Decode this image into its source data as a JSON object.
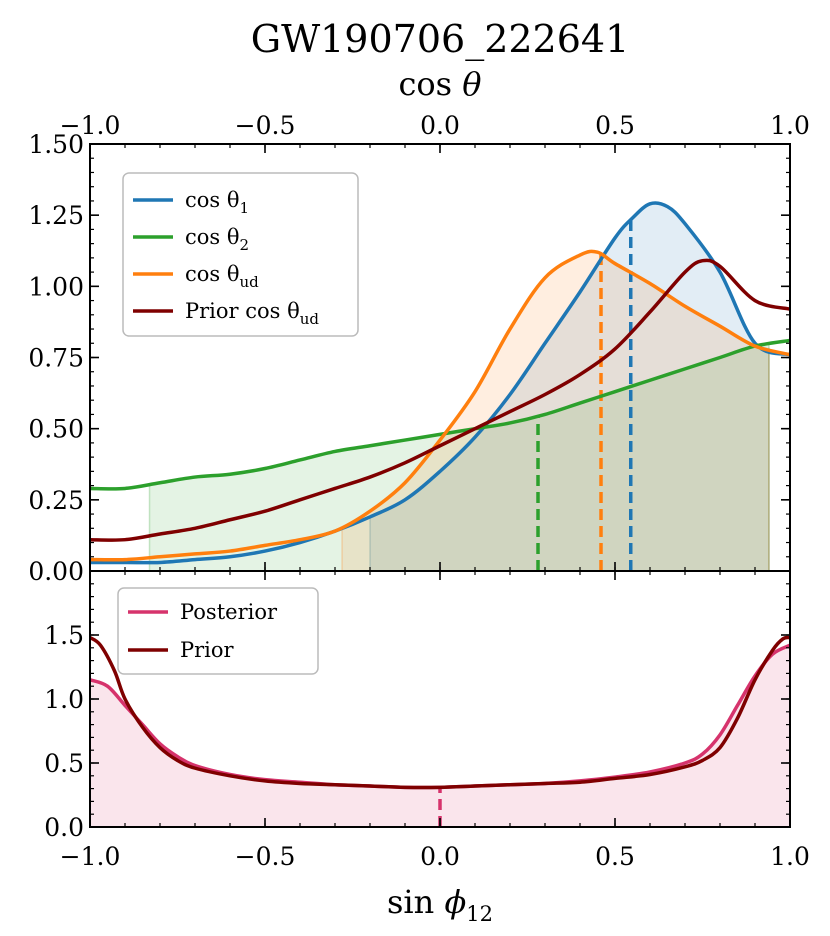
{
  "chart_data": {
    "type": "line",
    "title": "GW190706_222641",
    "panels": [
      {
        "id": "top",
        "top_xlabel": "cos θ",
        "xlim": [
          -1.0,
          1.0
        ],
        "ylim": [
          0.0,
          1.5
        ],
        "x_ticks": [
          "−1.0",
          "−0.5",
          "0.0",
          "0.5",
          "1.0"
        ],
        "x_tick_values": [
          -1.0,
          -0.5,
          0.0,
          0.5,
          1.0
        ],
        "y_ticks": [
          "0.00",
          "0.25",
          "0.50",
          "0.75",
          "1.00",
          "1.25",
          "1.50"
        ],
        "y_tick_values": [
          0.0,
          0.25,
          0.5,
          0.75,
          1.0,
          1.25,
          1.5
        ],
        "legend_position": "upper-left",
        "series": [
          {
            "name": "cos θ1",
            "legend_main": "cos θ",
            "legend_sub": "1",
            "color": "#1f77b4",
            "fill": true,
            "fill_range": [
              -0.2,
              0.94
            ],
            "median": 0.545,
            "x": [
              -1.0,
              -0.9,
              -0.8,
              -0.7,
              -0.6,
              -0.5,
              -0.4,
              -0.3,
              -0.2,
              -0.1,
              0.0,
              0.1,
              0.2,
              0.3,
              0.4,
              0.5,
              0.55,
              0.6,
              0.65,
              0.7,
              0.8,
              0.9,
              1.0
            ],
            "y": [
              0.03,
              0.03,
              0.03,
              0.04,
              0.05,
              0.07,
              0.1,
              0.14,
              0.19,
              0.25,
              0.35,
              0.47,
              0.62,
              0.8,
              0.98,
              1.17,
              1.24,
              1.29,
              1.28,
              1.22,
              1.05,
              0.8,
              0.76
            ]
          },
          {
            "name": "cos θ2",
            "legend_main": "cos θ",
            "legend_sub": "2",
            "color": "#2ca02c",
            "fill": true,
            "fill_range": [
              -0.83,
              0.94
            ],
            "median": 0.28,
            "x": [
              -1.0,
              -0.9,
              -0.8,
              -0.7,
              -0.6,
              -0.5,
              -0.4,
              -0.3,
              -0.2,
              -0.1,
              0.0,
              0.1,
              0.2,
              0.3,
              0.4,
              0.5,
              0.6,
              0.7,
              0.8,
              0.9,
              1.0
            ],
            "y": [
              0.29,
              0.29,
              0.31,
              0.33,
              0.34,
              0.36,
              0.39,
              0.42,
              0.44,
              0.46,
              0.48,
              0.5,
              0.52,
              0.55,
              0.59,
              0.63,
              0.67,
              0.71,
              0.75,
              0.79,
              0.81
            ]
          },
          {
            "name": "cos θud",
            "legend_main": "cos θ",
            "legend_sub": "ud",
            "color": "#ff7f0e",
            "fill": true,
            "fill_range": [
              -0.28,
              0.94
            ],
            "median": 0.46,
            "x": [
              -1.0,
              -0.9,
              -0.8,
              -0.7,
              -0.6,
              -0.5,
              -0.4,
              -0.3,
              -0.2,
              -0.1,
              0.0,
              0.1,
              0.2,
              0.3,
              0.4,
              0.45,
              0.5,
              0.6,
              0.7,
              0.8,
              0.9,
              1.0
            ],
            "y": [
              0.04,
              0.04,
              0.05,
              0.06,
              0.07,
              0.09,
              0.11,
              0.14,
              0.21,
              0.31,
              0.46,
              0.63,
              0.85,
              1.03,
              1.11,
              1.12,
              1.08,
              1.01,
              0.93,
              0.86,
              0.79,
              0.76
            ]
          },
          {
            "name": "Prior cos θud",
            "legend_main": "Prior cos θ",
            "legend_sub": "ud",
            "color": "#7f0000",
            "fill": false,
            "x": [
              -1.0,
              -0.9,
              -0.8,
              -0.7,
              -0.6,
              -0.5,
              -0.4,
              -0.3,
              -0.2,
              -0.1,
              0.0,
              0.1,
              0.2,
              0.3,
              0.4,
              0.5,
              0.6,
              0.7,
              0.75,
              0.8,
              0.9,
              1.0
            ],
            "y": [
              0.11,
              0.11,
              0.13,
              0.15,
              0.18,
              0.21,
              0.25,
              0.29,
              0.33,
              0.38,
              0.44,
              0.5,
              0.56,
              0.62,
              0.69,
              0.78,
              0.91,
              1.05,
              1.09,
              1.07,
              0.95,
              0.92
            ]
          }
        ]
      },
      {
        "id": "bottom",
        "xlabel": "sin ϕ12",
        "xlim": [
          -1.0,
          1.0
        ],
        "ylim": [
          0.0,
          2.0
        ],
        "x_ticks": [
          "−1.0",
          "−0.5",
          "0.0",
          "0.5",
          "1.0"
        ],
        "x_tick_values": [
          -1.0,
          -0.5,
          0.0,
          0.5,
          1.0
        ],
        "y_ticks": [
          "0.0",
          "0.5",
          "1.0",
          "1.5"
        ],
        "y_tick_values": [
          0.0,
          0.5,
          1.0,
          1.5
        ],
        "legend_position": "upper-left",
        "series": [
          {
            "name": "Posterior",
            "legend_main": "Posterior",
            "legend_sub": "",
            "color": "#d6336c",
            "fill": true,
            "fill_range": [
              -1.0,
              1.0
            ],
            "median": 0.0,
            "x": [
              -1.0,
              -0.95,
              -0.9,
              -0.85,
              -0.8,
              -0.75,
              -0.7,
              -0.6,
              -0.5,
              -0.4,
              -0.3,
              -0.2,
              -0.1,
              0.0,
              0.1,
              0.2,
              0.3,
              0.4,
              0.5,
              0.6,
              0.7,
              0.75,
              0.8,
              0.85,
              0.9,
              0.95,
              1.0
            ],
            "y": [
              1.15,
              1.1,
              0.95,
              0.8,
              0.65,
              0.55,
              0.48,
              0.41,
              0.37,
              0.35,
              0.33,
              0.32,
              0.31,
              0.31,
              0.32,
              0.33,
              0.34,
              0.36,
              0.39,
              0.43,
              0.5,
              0.57,
              0.72,
              0.95,
              1.18,
              1.35,
              1.42
            ]
          },
          {
            "name": "Prior",
            "legend_main": "Prior",
            "legend_sub": "",
            "color": "#7f0000",
            "fill": false,
            "x": [
              -1.0,
              -0.97,
              -0.93,
              -0.9,
              -0.85,
              -0.8,
              -0.75,
              -0.7,
              -0.6,
              -0.5,
              -0.4,
              -0.3,
              -0.2,
              -0.1,
              0.0,
              0.1,
              0.2,
              0.3,
              0.4,
              0.5,
              0.6,
              0.7,
              0.75,
              0.8,
              0.85,
              0.9,
              0.95,
              0.98,
              1.0
            ],
            "y": [
              1.48,
              1.42,
              1.22,
              1.0,
              0.78,
              0.62,
              0.52,
              0.46,
              0.4,
              0.36,
              0.34,
              0.33,
              0.32,
              0.31,
              0.31,
              0.32,
              0.33,
              0.34,
              0.35,
              0.38,
              0.41,
              0.47,
              0.52,
              0.62,
              0.85,
              1.15,
              1.38,
              1.47,
              1.48
            ]
          }
        ]
      }
    ]
  }
}
